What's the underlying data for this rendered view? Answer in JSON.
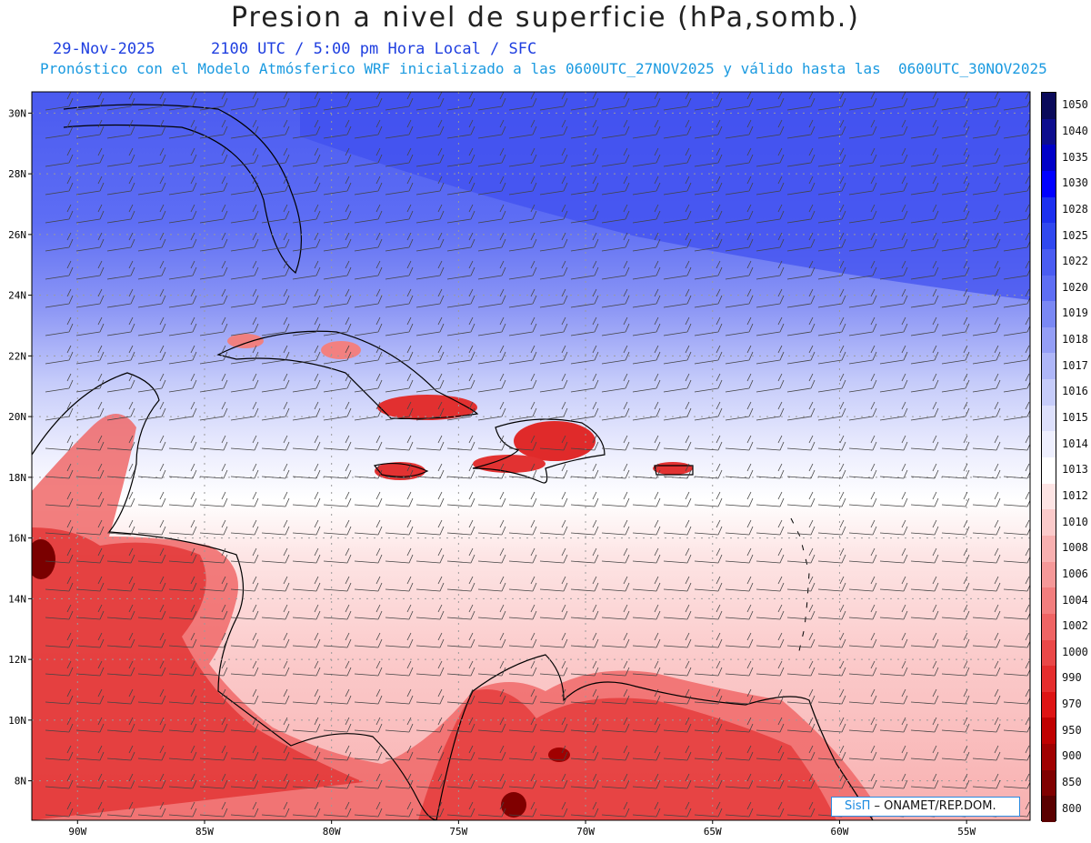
{
  "header": {
    "title": "Presion a nivel de superficie (hPa,somb.)",
    "date_line": "29-Nov-2025      2100 UTC / 5:00 pm Hora Local / SFC",
    "forecast_line": "Pronóstico con el Modelo Atmósferico WRF inicializado a las 0600UTC_27NOV2025 y válido hasta las  0600UTC_30NOV2025"
  },
  "axes": {
    "lat_labels": [
      "30N",
      "28N",
      "26N",
      "24N",
      "22N",
      "20N",
      "18N",
      "16N",
      "14N",
      "12N",
      "10N",
      "8N"
    ],
    "lon_labels": [
      "90W",
      "85W",
      "80W",
      "75W",
      "70W",
      "65W",
      "60W",
      "55W"
    ]
  },
  "legend": {
    "levels": [
      "1050",
      "1040",
      "1035",
      "1030",
      "1028",
      "1025",
      "1022",
      "1020",
      "1019",
      "1018",
      "1017",
      "1016",
      "1015",
      "1014",
      "1013",
      "1012",
      "1010",
      "1008",
      "1006",
      "1004",
      "1002",
      "1000",
      "990",
      "970",
      "950",
      "900",
      "850",
      "800"
    ],
    "colors": [
      "#0a0a5a",
      "#0d0d8e",
      "#0000c8",
      "#0000ff",
      "#1c30f0",
      "#3048f0",
      "#4a5cf2",
      "#5e6ef4",
      "#7a88f4",
      "#949ef6",
      "#aeb6f8",
      "#c6ccfa",
      "#dde0fc",
      "#eeeffe",
      "#ffffff",
      "#fde4e4",
      "#fbcaca",
      "#f8b0b0",
      "#f59898",
      "#f27e7e",
      "#ef6464",
      "#ea4848",
      "#e52e2e",
      "#de1414",
      "#c00000",
      "#a00000",
      "#800000",
      "#5a0000"
    ]
  },
  "credit": {
    "brand": "SisΠ",
    "org": " – ONAMET/REP.DOM."
  }
}
